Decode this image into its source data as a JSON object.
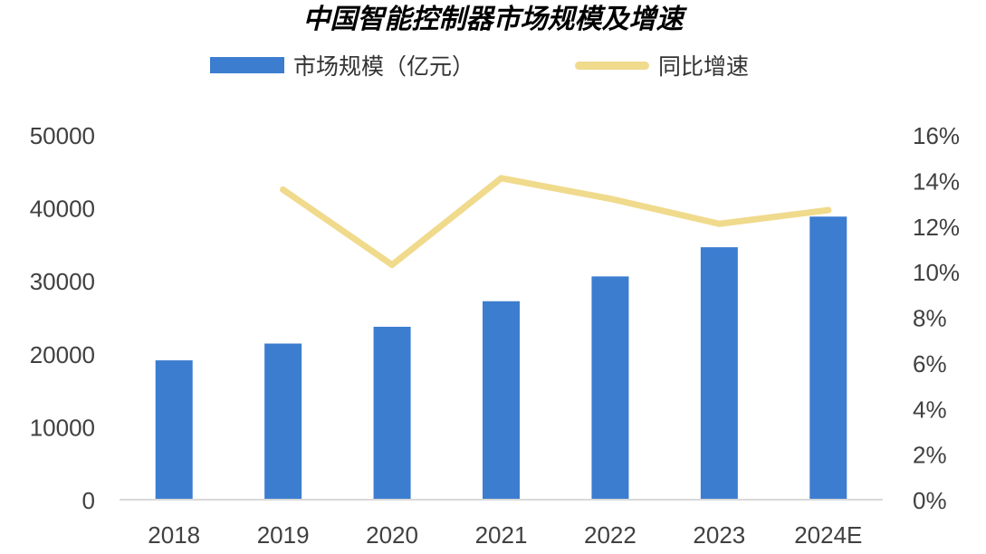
{
  "chart_data": {
    "type": "bar",
    "title": "中国智能控制器市场规模及增速",
    "categories": [
      "2018",
      "2019",
      "2020",
      "2021",
      "2022",
      "2023",
      "2024E"
    ],
    "series": [
      {
        "name": "市场规模（亿元）",
        "type": "bar",
        "axis": "left",
        "values": [
          19100,
          21400,
          23700,
          27200,
          30600,
          34600,
          38800
        ]
      },
      {
        "name": "同比增速",
        "type": "line",
        "axis": "right",
        "values": [
          null,
          13.6,
          10.3,
          14.1,
          13.2,
          12.1,
          12.7
        ]
      }
    ],
    "y_left": {
      "ylim": [
        0,
        50000
      ],
      "ticks": [
        "0",
        "10000",
        "20000",
        "30000",
        "40000",
        "50000"
      ]
    },
    "y_right": {
      "ylim": [
        0,
        16
      ],
      "ticks": [
        "0%",
        "2%",
        "4%",
        "6%",
        "8%",
        "10%",
        "12%",
        "14%",
        "16%"
      ]
    },
    "grid": false,
    "legend_position": "top",
    "colors": {
      "bar": "#3C7DD0",
      "line": "#F0DA8C",
      "axis": "#D9D9D9"
    }
  }
}
